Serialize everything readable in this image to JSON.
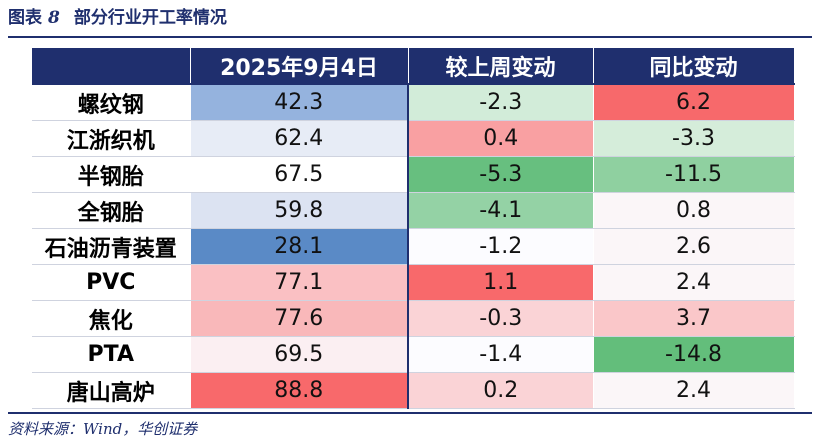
{
  "title": {
    "prefix": "图表",
    "number": "8",
    "text": "部分行业开工率情况"
  },
  "columns": [
    "",
    "2025年9月4日",
    "较上周变动",
    "同比变动"
  ],
  "rows": [
    {
      "name": "螺纹钢",
      "value": "42.3",
      "wow": "-2.3",
      "yoy": "6.2",
      "value_color": "#95b3de",
      "wow_color": "#d2ecd9",
      "yoy_color": "#f7696b"
    },
    {
      "name": "江浙织机",
      "value": "62.4",
      "wow": "0.4",
      "yoy": "-3.3",
      "value_color": "#e7ecf6",
      "wow_color": "#f9a0a2",
      "yoy_color": "#d5edda"
    },
    {
      "name": "半钢胎",
      "value": "67.5",
      "wow": "-5.3",
      "yoy": "-11.5",
      "value_color": "#ffffff",
      "wow_color": "#67bf7f",
      "yoy_color": "#8fd0a0"
    },
    {
      "name": "全钢胎",
      "value": "59.8",
      "wow": "-4.1",
      "yoy": "0.8",
      "value_color": "#dce3f2",
      "wow_color": "#94d2a5",
      "yoy_color": "#fbf6f8"
    },
    {
      "name": "石油沥青装置",
      "value": "28.1",
      "wow": "-1.2",
      "yoy": "2.6",
      "value_color": "#5a8ac6",
      "wow_color": "#fcfcff",
      "yoy_color": "#fbf6f8"
    },
    {
      "name": "PVC",
      "value": "77.1",
      "wow": "1.1",
      "yoy": "2.4",
      "value_color": "#fac0c3",
      "wow_color": "#f8696b",
      "yoy_color": "#fbf6f8"
    },
    {
      "name": "焦化",
      "value": "77.6",
      "wow": "-0.3",
      "yoy": "3.7",
      "value_color": "#f9b8ba",
      "wow_color": "#fad3d6",
      "yoy_color": "#fac7c9"
    },
    {
      "name": "PTA",
      "value": "69.5",
      "wow": "-1.4",
      "yoy": "-14.8",
      "value_color": "#fbeff2",
      "wow_color": "#fcfcff",
      "yoy_color": "#63be7b"
    },
    {
      "name": "唐山高炉",
      "value": "88.8",
      "wow": "0.2",
      "yoy": "2.4",
      "value_color": "#f8696b",
      "wow_color": "#fad3d6",
      "yoy_color": "#fbf6f8"
    }
  ],
  "source": "资料来源：Wind，华创证券"
}
